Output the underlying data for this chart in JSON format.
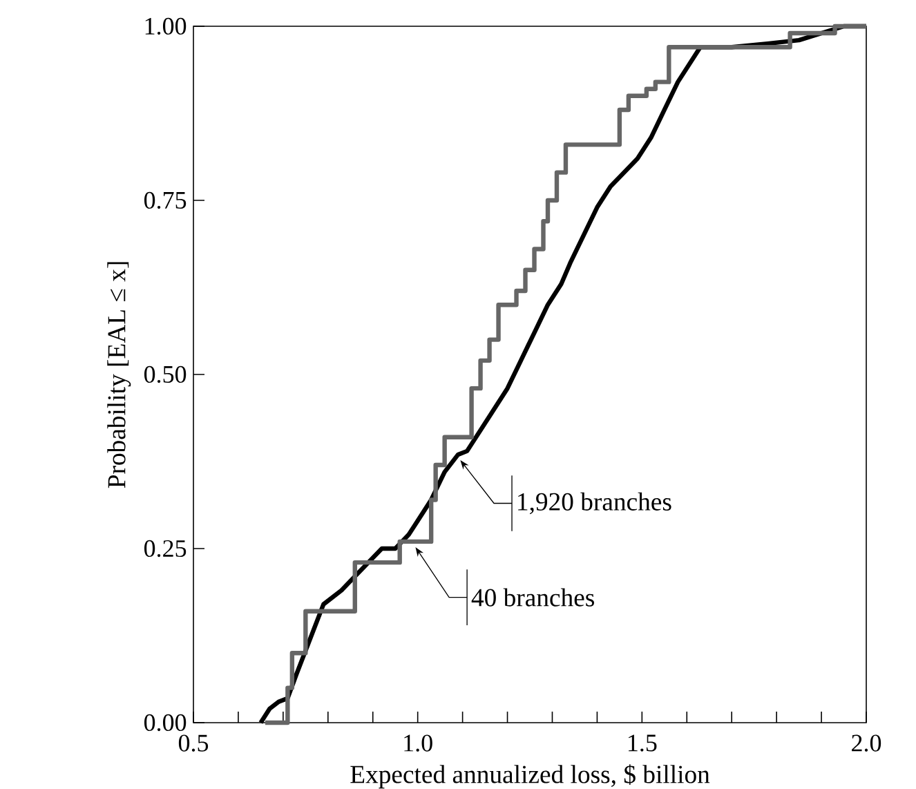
{
  "chart_data": {
    "type": "line",
    "xlabel": "Expected annualized loss, $ billion",
    "ylabel": "Probability [EAL ≤ x]",
    "xlim": [
      0.5,
      2.0
    ],
    "xticks": [
      {
        "value": 0.5,
        "label": "0.5"
      },
      {
        "value": 0.6,
        "label": null
      },
      {
        "value": 0.7,
        "label": null
      },
      {
        "value": 0.8,
        "label": null
      },
      {
        "value": 0.9,
        "label": null
      },
      {
        "value": 1.0,
        "label": "1.0"
      },
      {
        "value": 1.1,
        "label": null
      },
      {
        "value": 1.2,
        "label": null
      },
      {
        "value": 1.3,
        "label": null
      },
      {
        "value": 1.4,
        "label": null
      },
      {
        "value": 1.5,
        "label": "1.5"
      },
      {
        "value": 1.6,
        "label": null
      },
      {
        "value": 1.7,
        "label": null
      },
      {
        "value": 1.8,
        "label": null
      },
      {
        "value": 1.9,
        "label": null
      },
      {
        "value": 2.0,
        "label": "2.0"
      }
    ],
    "ylim": [
      0,
      1
    ],
    "yticks": [
      {
        "value": 0,
        "label": "0.00"
      },
      {
        "value": 0.25,
        "label": "0.25"
      },
      {
        "value": 0.5,
        "label": "0.50"
      },
      {
        "value": 0.75,
        "label": "0.75"
      },
      {
        "value": 1,
        "label": "1.00"
      }
    ],
    "series": [
      {
        "color": "#000000",
        "x": [
          0.65,
          0.67,
          0.69,
          0.71,
          0.73,
          0.76,
          0.79,
          0.83,
          0.86,
          0.89,
          0.92,
          0.95,
          0.98,
          1.0,
          1.03,
          1.06,
          1.09,
          1.11,
          1.14,
          1.17,
          1.2,
          1.23,
          1.26,
          1.29,
          1.32,
          1.34,
          1.37,
          1.4,
          1.43,
          1.46,
          1.49,
          1.52,
          1.55,
          1.58,
          1.61,
          1.63,
          1.7,
          1.78,
          1.85,
          1.9,
          1.95,
          2.0
        ],
        "values": [
          0,
          0.02,
          0.03,
          0.035,
          0.07,
          0.12,
          0.17,
          0.19,
          0.21,
          0.23,
          0.25,
          0.25,
          0.27,
          0.29,
          0.32,
          0.36,
          0.385,
          0.39,
          0.42,
          0.45,
          0.48,
          0.52,
          0.56,
          0.6,
          0.63,
          0.66,
          0.7,
          0.74,
          0.77,
          0.79,
          0.81,
          0.84,
          0.88,
          0.92,
          0.95,
          0.97,
          0.97,
          0.975,
          0.98,
          0.99,
          1.0,
          1.0
        ]
      },
      {
        "type": "step",
        "color": "#666666",
        "x": [
          0.66,
          0.71,
          0.72,
          0.75,
          0.86,
          0.96,
          1.03,
          1.04,
          1.06,
          1.12,
          1.14,
          1.16,
          1.18,
          1.22,
          1.24,
          1.26,
          1.28,
          1.29,
          1.31,
          1.33,
          1.45,
          1.47,
          1.51,
          1.53,
          1.56,
          1.83,
          1.93,
          2.0
        ],
        "values": [
          0,
          0.05,
          0.1,
          0.16,
          0.23,
          0.26,
          0.32,
          0.37,
          0.41,
          0.48,
          0.52,
          0.55,
          0.6,
          0.62,
          0.65,
          0.68,
          0.72,
          0.75,
          0.79,
          0.83,
          0.88,
          0.9,
          0.91,
          0.92,
          0.97,
          0.99,
          1.0,
          1.0
        ]
      }
    ],
    "annotations": [
      {
        "text": "1,920 branches",
        "x": 1.09,
        "y": 0.385
      },
      {
        "text": "40 branches",
        "x": 0.99,
        "y": 0.26
      }
    ]
  }
}
